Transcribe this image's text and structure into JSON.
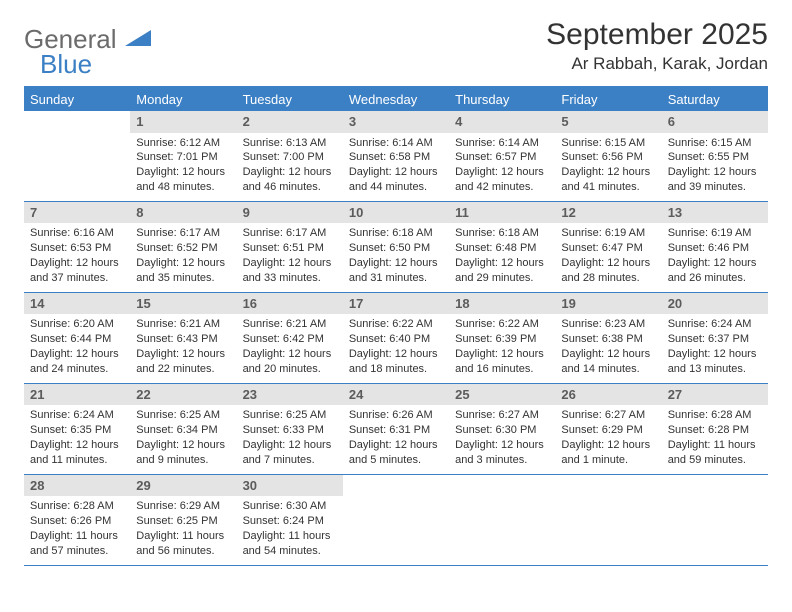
{
  "logo": {
    "text_general": "General",
    "text_blue": "Blue",
    "shape_color": "#3b7fc4"
  },
  "title": "September 2025",
  "location": "Ar Rabbah, Karak, Jordan",
  "colors": {
    "header_bg": "#3b7fc4",
    "header_text": "#ffffff",
    "daynum_bg": "#e4e4e4",
    "daynum_text": "#5c5c5c",
    "border": "#3b7fc4",
    "body_text": "#333333",
    "background": "#ffffff"
  },
  "weekdays": [
    "Sunday",
    "Monday",
    "Tuesday",
    "Wednesday",
    "Thursday",
    "Friday",
    "Saturday"
  ],
  "weeks": [
    [
      {
        "n": "",
        "sr": "",
        "ss": "",
        "dl": ""
      },
      {
        "n": "1",
        "sr": "Sunrise: 6:12 AM",
        "ss": "Sunset: 7:01 PM",
        "dl": "Daylight: 12 hours and 48 minutes."
      },
      {
        "n": "2",
        "sr": "Sunrise: 6:13 AM",
        "ss": "Sunset: 7:00 PM",
        "dl": "Daylight: 12 hours and 46 minutes."
      },
      {
        "n": "3",
        "sr": "Sunrise: 6:14 AM",
        "ss": "Sunset: 6:58 PM",
        "dl": "Daylight: 12 hours and 44 minutes."
      },
      {
        "n": "4",
        "sr": "Sunrise: 6:14 AM",
        "ss": "Sunset: 6:57 PM",
        "dl": "Daylight: 12 hours and 42 minutes."
      },
      {
        "n": "5",
        "sr": "Sunrise: 6:15 AM",
        "ss": "Sunset: 6:56 PM",
        "dl": "Daylight: 12 hours and 41 minutes."
      },
      {
        "n": "6",
        "sr": "Sunrise: 6:15 AM",
        "ss": "Sunset: 6:55 PM",
        "dl": "Daylight: 12 hours and 39 minutes."
      }
    ],
    [
      {
        "n": "7",
        "sr": "Sunrise: 6:16 AM",
        "ss": "Sunset: 6:53 PM",
        "dl": "Daylight: 12 hours and 37 minutes."
      },
      {
        "n": "8",
        "sr": "Sunrise: 6:17 AM",
        "ss": "Sunset: 6:52 PM",
        "dl": "Daylight: 12 hours and 35 minutes."
      },
      {
        "n": "9",
        "sr": "Sunrise: 6:17 AM",
        "ss": "Sunset: 6:51 PM",
        "dl": "Daylight: 12 hours and 33 minutes."
      },
      {
        "n": "10",
        "sr": "Sunrise: 6:18 AM",
        "ss": "Sunset: 6:50 PM",
        "dl": "Daylight: 12 hours and 31 minutes."
      },
      {
        "n": "11",
        "sr": "Sunrise: 6:18 AM",
        "ss": "Sunset: 6:48 PM",
        "dl": "Daylight: 12 hours and 29 minutes."
      },
      {
        "n": "12",
        "sr": "Sunrise: 6:19 AM",
        "ss": "Sunset: 6:47 PM",
        "dl": "Daylight: 12 hours and 28 minutes."
      },
      {
        "n": "13",
        "sr": "Sunrise: 6:19 AM",
        "ss": "Sunset: 6:46 PM",
        "dl": "Daylight: 12 hours and 26 minutes."
      }
    ],
    [
      {
        "n": "14",
        "sr": "Sunrise: 6:20 AM",
        "ss": "Sunset: 6:44 PM",
        "dl": "Daylight: 12 hours and 24 minutes."
      },
      {
        "n": "15",
        "sr": "Sunrise: 6:21 AM",
        "ss": "Sunset: 6:43 PM",
        "dl": "Daylight: 12 hours and 22 minutes."
      },
      {
        "n": "16",
        "sr": "Sunrise: 6:21 AM",
        "ss": "Sunset: 6:42 PM",
        "dl": "Daylight: 12 hours and 20 minutes."
      },
      {
        "n": "17",
        "sr": "Sunrise: 6:22 AM",
        "ss": "Sunset: 6:40 PM",
        "dl": "Daylight: 12 hours and 18 minutes."
      },
      {
        "n": "18",
        "sr": "Sunrise: 6:22 AM",
        "ss": "Sunset: 6:39 PM",
        "dl": "Daylight: 12 hours and 16 minutes."
      },
      {
        "n": "19",
        "sr": "Sunrise: 6:23 AM",
        "ss": "Sunset: 6:38 PM",
        "dl": "Daylight: 12 hours and 14 minutes."
      },
      {
        "n": "20",
        "sr": "Sunrise: 6:24 AM",
        "ss": "Sunset: 6:37 PM",
        "dl": "Daylight: 12 hours and 13 minutes."
      }
    ],
    [
      {
        "n": "21",
        "sr": "Sunrise: 6:24 AM",
        "ss": "Sunset: 6:35 PM",
        "dl": "Daylight: 12 hours and 11 minutes."
      },
      {
        "n": "22",
        "sr": "Sunrise: 6:25 AM",
        "ss": "Sunset: 6:34 PM",
        "dl": "Daylight: 12 hours and 9 minutes."
      },
      {
        "n": "23",
        "sr": "Sunrise: 6:25 AM",
        "ss": "Sunset: 6:33 PM",
        "dl": "Daylight: 12 hours and 7 minutes."
      },
      {
        "n": "24",
        "sr": "Sunrise: 6:26 AM",
        "ss": "Sunset: 6:31 PM",
        "dl": "Daylight: 12 hours and 5 minutes."
      },
      {
        "n": "25",
        "sr": "Sunrise: 6:27 AM",
        "ss": "Sunset: 6:30 PM",
        "dl": "Daylight: 12 hours and 3 minutes."
      },
      {
        "n": "26",
        "sr": "Sunrise: 6:27 AM",
        "ss": "Sunset: 6:29 PM",
        "dl": "Daylight: 12 hours and 1 minute."
      },
      {
        "n": "27",
        "sr": "Sunrise: 6:28 AM",
        "ss": "Sunset: 6:28 PM",
        "dl": "Daylight: 11 hours and 59 minutes."
      }
    ],
    [
      {
        "n": "28",
        "sr": "Sunrise: 6:28 AM",
        "ss": "Sunset: 6:26 PM",
        "dl": "Daylight: 11 hours and 57 minutes."
      },
      {
        "n": "29",
        "sr": "Sunrise: 6:29 AM",
        "ss": "Sunset: 6:25 PM",
        "dl": "Daylight: 11 hours and 56 minutes."
      },
      {
        "n": "30",
        "sr": "Sunrise: 6:30 AM",
        "ss": "Sunset: 6:24 PM",
        "dl": "Daylight: 11 hours and 54 minutes."
      },
      {
        "n": "",
        "sr": "",
        "ss": "",
        "dl": ""
      },
      {
        "n": "",
        "sr": "",
        "ss": "",
        "dl": ""
      },
      {
        "n": "",
        "sr": "",
        "ss": "",
        "dl": ""
      },
      {
        "n": "",
        "sr": "",
        "ss": "",
        "dl": ""
      }
    ]
  ]
}
